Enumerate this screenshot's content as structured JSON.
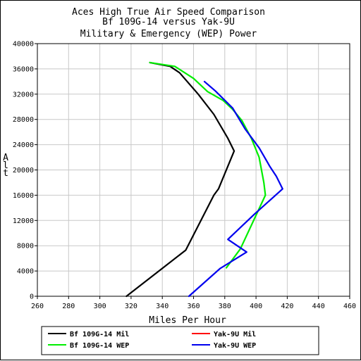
{
  "chart_data": {
    "type": "line",
    "title": "Aces High True Air Speed Comparison",
    "subtitle": "Bf 109G-14 versus Yak-9U",
    "subtitle2": "Military & Emergency (WEP) Power",
    "xlabel": "Miles Per Hour",
    "ylabel": "Alt",
    "xlim": [
      260,
      460
    ],
    "ylim": [
      0,
      40000
    ],
    "xticks": [
      "260",
      "280",
      "300",
      "320",
      "340",
      "360",
      "380",
      "400",
      "420",
      "440",
      "460"
    ],
    "yticks": [
      "0",
      "4000",
      "8000",
      "12000",
      "16000",
      "20000",
      "24000",
      "28000",
      "32000",
      "36000",
      "40000"
    ],
    "grid": true,
    "legend_position": "bottom",
    "series": [
      {
        "name": "Bf 109G-14 Mil",
        "color": "#000000",
        "points": [
          [
            317,
            0
          ],
          [
            355,
            7300
          ],
          [
            373,
            16000
          ],
          [
            376,
            17000
          ],
          [
            386,
            23000
          ],
          [
            382,
            25000
          ],
          [
            373,
            28800
          ],
          [
            363,
            32000
          ],
          [
            351,
            35400
          ],
          [
            345,
            36400
          ],
          [
            332,
            37000
          ]
        ]
      },
      {
        "name": "Yak-9U Mil",
        "color": "#ff0000",
        "points": []
      },
      {
        "name": "Bf 109G-14 WEP",
        "color": "#00ee00",
        "points": [
          [
            381,
            4500
          ],
          [
            390,
            7500
          ],
          [
            406,
            16000
          ],
          [
            405,
            18000
          ],
          [
            402,
            22000
          ],
          [
            397,
            25000
          ],
          [
            391,
            27800
          ],
          [
            385,
            29600
          ],
          [
            379,
            31000
          ],
          [
            369,
            32400
          ],
          [
            360,
            34500
          ],
          [
            348,
            36400
          ],
          [
            332,
            37000
          ]
        ]
      },
      {
        "name": "Yak-9U WEP",
        "color": "#0000ee",
        "points": [
          [
            357,
            0
          ],
          [
            377,
            4400
          ],
          [
            394,
            7000
          ],
          [
            382,
            9000
          ],
          [
            399,
            13000
          ],
          [
            417,
            17000
          ],
          [
            413,
            19000
          ],
          [
            409,
            20500
          ],
          [
            402,
            23500
          ],
          [
            393,
            26500
          ],
          [
            385,
            29800
          ],
          [
            374,
            32500
          ],
          [
            367,
            34000
          ]
        ]
      }
    ]
  }
}
